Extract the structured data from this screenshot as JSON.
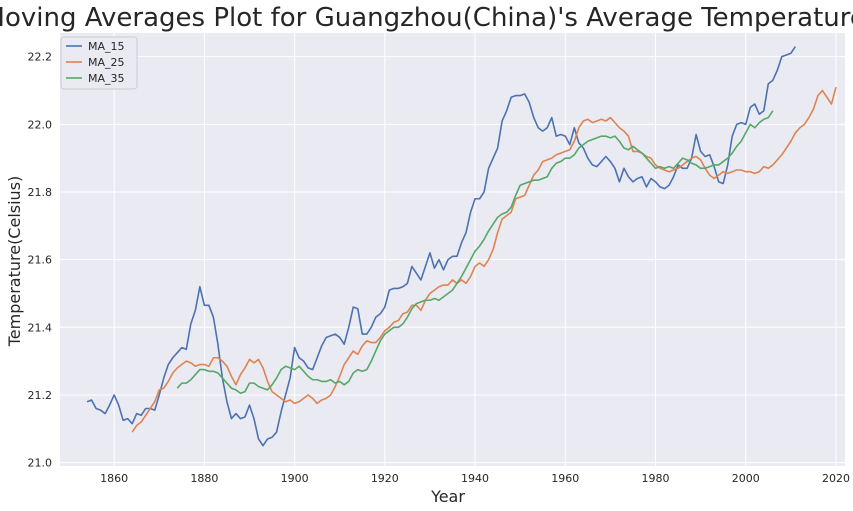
{
  "chart_data": {
    "type": "line",
    "title": "Moving Averages Plot for Guangzhou(China)'s Average Temperatures",
    "xlabel": "Year",
    "ylabel": "Temperature(Celsius)",
    "xlim": [
      1848,
      2022
    ],
    "ylim": [
      20.99,
      22.27
    ],
    "xticks": [
      1860,
      1880,
      1900,
      1920,
      1940,
      1960,
      1980,
      2000,
      2020
    ],
    "yticks": [
      21.0,
      21.2,
      21.4,
      21.6,
      21.8,
      22.0,
      22.2
    ],
    "grid": true,
    "legend_position": "top-left",
    "series": [
      {
        "name": "MA_15",
        "color": "#4c72b0",
        "x_start": 1854,
        "values": [
          21.18,
          21.185,
          21.16,
          21.155,
          21.145,
          21.17,
          21.2,
          21.17,
          21.125,
          21.13,
          21.115,
          21.145,
          21.14,
          21.16,
          21.16,
          21.155,
          21.2,
          21.25,
          21.29,
          21.31,
          21.325,
          21.34,
          21.335,
          21.41,
          21.45,
          21.52,
          21.465,
          21.465,
          21.43,
          21.35,
          21.25,
          21.18,
          21.13,
          21.145,
          21.13,
          21.135,
          21.17,
          21.13,
          21.07,
          21.05,
          21.07,
          21.075,
          21.09,
          21.15,
          21.2,
          21.25,
          21.34,
          21.31,
          21.3,
          21.28,
          21.275,
          21.31,
          21.345,
          21.37,
          21.375,
          21.38,
          21.37,
          21.35,
          21.4,
          21.46,
          21.455,
          21.38,
          21.38,
          21.4,
          21.43,
          21.44,
          21.46,
          21.51,
          21.515,
          21.515,
          21.52,
          21.53,
          21.58,
          21.56,
          21.54,
          21.58,
          21.62,
          21.575,
          21.6,
          21.57,
          21.6,
          21.61,
          21.61,
          21.65,
          21.68,
          21.74,
          21.78,
          21.78,
          21.8,
          21.87,
          21.9,
          21.93,
          22.01,
          22.04,
          22.08,
          22.085,
          22.085,
          22.09,
          22.065,
          22.02,
          21.99,
          21.98,
          21.99,
          22.02,
          21.965,
          21.97,
          21.965,
          21.94,
          21.99,
          21.945,
          21.93,
          21.9,
          21.88,
          21.875,
          21.89,
          21.905,
          21.89,
          21.87,
          21.83,
          21.87,
          21.845,
          21.83,
          21.84,
          21.845,
          21.815,
          21.84,
          21.83,
          21.815,
          21.81,
          21.82,
          21.845,
          21.88,
          21.87,
          21.87,
          21.9,
          21.97,
          21.92,
          21.905,
          21.91,
          21.875,
          21.83,
          21.825,
          21.88,
          21.965,
          22.0,
          22.005,
          22.0,
          22.05,
          22.06,
          22.03,
          22.04,
          22.12,
          22.13,
          22.16,
          22.2,
          22.205,
          22.21,
          22.23
        ]
      },
      {
        "name": "MA_25",
        "color": "#dd8452",
        "x_start": 1864,
        "values": [
          21.09,
          21.11,
          21.12,
          21.14,
          21.16,
          21.18,
          21.215,
          21.22,
          21.24,
          21.265,
          21.28,
          21.29,
          21.3,
          21.295,
          21.285,
          21.29,
          21.29,
          21.285,
          21.31,
          21.31,
          21.3,
          21.285,
          21.255,
          21.23,
          21.26,
          21.28,
          21.305,
          21.295,
          21.305,
          21.28,
          21.24,
          21.21,
          21.2,
          21.19,
          21.18,
          21.185,
          21.175,
          21.18,
          21.19,
          21.2,
          21.19,
          21.175,
          21.185,
          21.19,
          21.2,
          21.225,
          21.255,
          21.29,
          21.31,
          21.33,
          21.32,
          21.345,
          21.36,
          21.355,
          21.355,
          21.37,
          21.39,
          21.4,
          21.415,
          21.42,
          21.44,
          21.445,
          21.465,
          21.465,
          21.45,
          21.48,
          21.5,
          21.51,
          21.52,
          21.525,
          21.525,
          21.54,
          21.53,
          21.54,
          21.53,
          21.55,
          21.58,
          21.59,
          21.58,
          21.6,
          21.63,
          21.68,
          21.72,
          21.73,
          21.74,
          21.78,
          21.785,
          21.79,
          21.82,
          21.85,
          21.865,
          21.89,
          21.895,
          21.9,
          21.91,
          21.915,
          21.92,
          21.925,
          21.95,
          21.99,
          22.01,
          22.015,
          22.005,
          22.01,
          22.015,
          22.01,
          22.02,
          22.005,
          21.99,
          21.98,
          21.965,
          21.92,
          21.92,
          21.915,
          21.905,
          21.9,
          21.88,
          21.87,
          21.865,
          21.86,
          21.865,
          21.87,
          21.88,
          21.89,
          21.9,
          21.905,
          21.895,
          21.87,
          21.85,
          21.84,
          21.85,
          21.86,
          21.855,
          21.86,
          21.865,
          21.865,
          21.86,
          21.86,
          21.855,
          21.86,
          21.875,
          21.87,
          21.88,
          21.895,
          21.91,
          21.93,
          21.95,
          21.975,
          21.99,
          22.0,
          22.02,
          22.045,
          22.085,
          22.1,
          22.08,
          22.06,
          22.11
        ]
      },
      {
        "name": "MA_35",
        "color": "#55a868",
        "x_start": 1874,
        "values": [
          21.22,
          21.235,
          21.235,
          21.245,
          21.26,
          21.275,
          21.275,
          21.27,
          21.27,
          21.265,
          21.25,
          21.235,
          21.22,
          21.215,
          21.205,
          21.21,
          21.235,
          21.235,
          21.225,
          21.22,
          21.215,
          21.23,
          21.25,
          21.275,
          21.285,
          21.28,
          21.275,
          21.285,
          21.27,
          21.255,
          21.245,
          21.245,
          21.24,
          21.24,
          21.245,
          21.235,
          21.24,
          21.23,
          21.24,
          21.265,
          21.275,
          21.27,
          21.275,
          21.3,
          21.33,
          21.36,
          21.38,
          21.39,
          21.4,
          21.4,
          21.41,
          21.43,
          21.455,
          21.47,
          21.475,
          21.48,
          21.48,
          21.485,
          21.48,
          21.49,
          21.5,
          21.51,
          21.53,
          21.55,
          21.575,
          21.6,
          21.625,
          21.64,
          21.66,
          21.685,
          21.705,
          21.725,
          21.735,
          21.74,
          21.755,
          21.79,
          21.82,
          21.825,
          21.83,
          21.835,
          21.835,
          21.84,
          21.845,
          21.87,
          21.885,
          21.89,
          21.9,
          21.9,
          21.91,
          21.93,
          21.94,
          21.95,
          21.955,
          21.96,
          21.965,
          21.965,
          21.96,
          21.965,
          21.95,
          21.93,
          21.925,
          21.935,
          21.925,
          21.915,
          21.9,
          21.885,
          21.87,
          21.875,
          21.87,
          21.875,
          21.87,
          21.885,
          21.9,
          21.895,
          21.885,
          21.88,
          21.87,
          21.87,
          21.875,
          21.88,
          21.88,
          21.89,
          21.9,
          21.915,
          21.935,
          21.95,
          21.975,
          22.0,
          21.99,
          22.005,
          22.015,
          22.02,
          22.04
        ]
      }
    ]
  }
}
